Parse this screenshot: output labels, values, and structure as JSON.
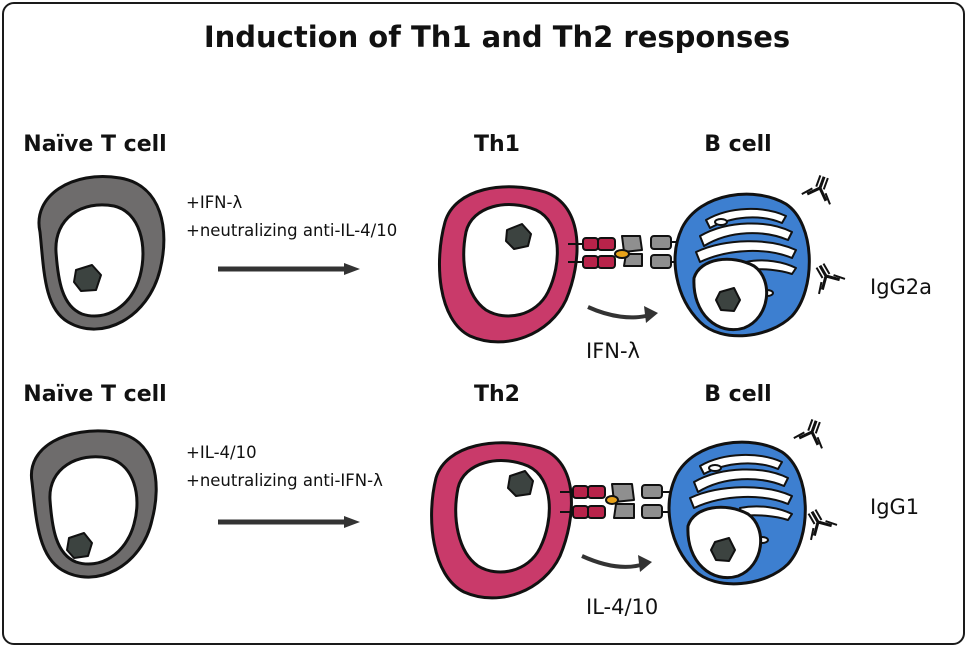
{
  "title": "Induction of Th1 and Th2 responses",
  "rows": [
    {
      "naive_label": "Naïve T cell",
      "conditions": [
        "+IFN-λ",
        "+neutralizing anti-IL-4/10"
      ],
      "th_label": "Th1",
      "b_label": "B cell",
      "cytokine": "IFN-λ",
      "isotype": "IgG2a",
      "th_color": "#c93a6a"
    },
    {
      "naive_label": "Naïve T cell",
      "conditions": [
        "+IL-4/10",
        "+neutralizing anti-IFN-λ"
      ],
      "th_label": "Th2",
      "b_label": "B cell",
      "cytokine": "IL-4/10",
      "isotype": "IgG1",
      "th_color": "#c93a6a"
    }
  ],
  "colors": {
    "naive_cytoplasm": "#6e6c6c",
    "b_cell": "#3d7fd0",
    "tcr": "#b8234a",
    "mhc": "#8f8f8f",
    "antigen": "#e8a21a",
    "nucleolus": "#3c4340",
    "arrow": "#333333"
  },
  "icons": [
    "antibody-icon",
    "arrow-right-icon",
    "curved-arrow-icon"
  ]
}
